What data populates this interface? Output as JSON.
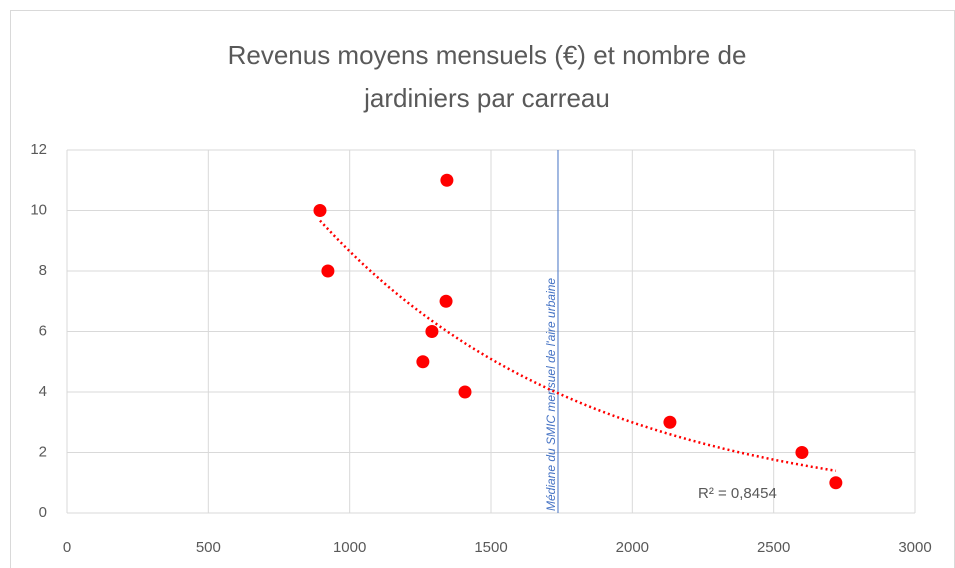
{
  "chart_data": {
    "type": "scatter",
    "title": [
      "Revenus moyens mensuels (€) et nombre de",
      "jardiniers par carreau"
    ],
    "x": [
      895,
      923,
      1344,
      1341,
      1291,
      1259,
      1408,
      2133,
      2600,
      2720
    ],
    "series": [
      {
        "name": "Jardiniers",
        "color": "#ff0000",
        "values": [
          10,
          8,
          11,
          7,
          6,
          5,
          4,
          3,
          2,
          1
        ]
      }
    ],
    "xlim": [
      0,
      3000
    ],
    "xticks": [
      0,
      500,
      1000,
      1500,
      2000,
      2500,
      3000
    ],
    "ylim": [
      0,
      12
    ],
    "yticks": [
      0,
      2,
      4,
      6,
      8,
      10,
      12
    ],
    "grid": true,
    "trendline": {
      "type": "exponential",
      "color": "#ff0000",
      "label": "R² = 0,8454"
    },
    "reference_line": {
      "x": 1737,
      "color": "#4472c4",
      "label": "Médiane du SMIC mensuel de l'aire urbaine"
    }
  }
}
